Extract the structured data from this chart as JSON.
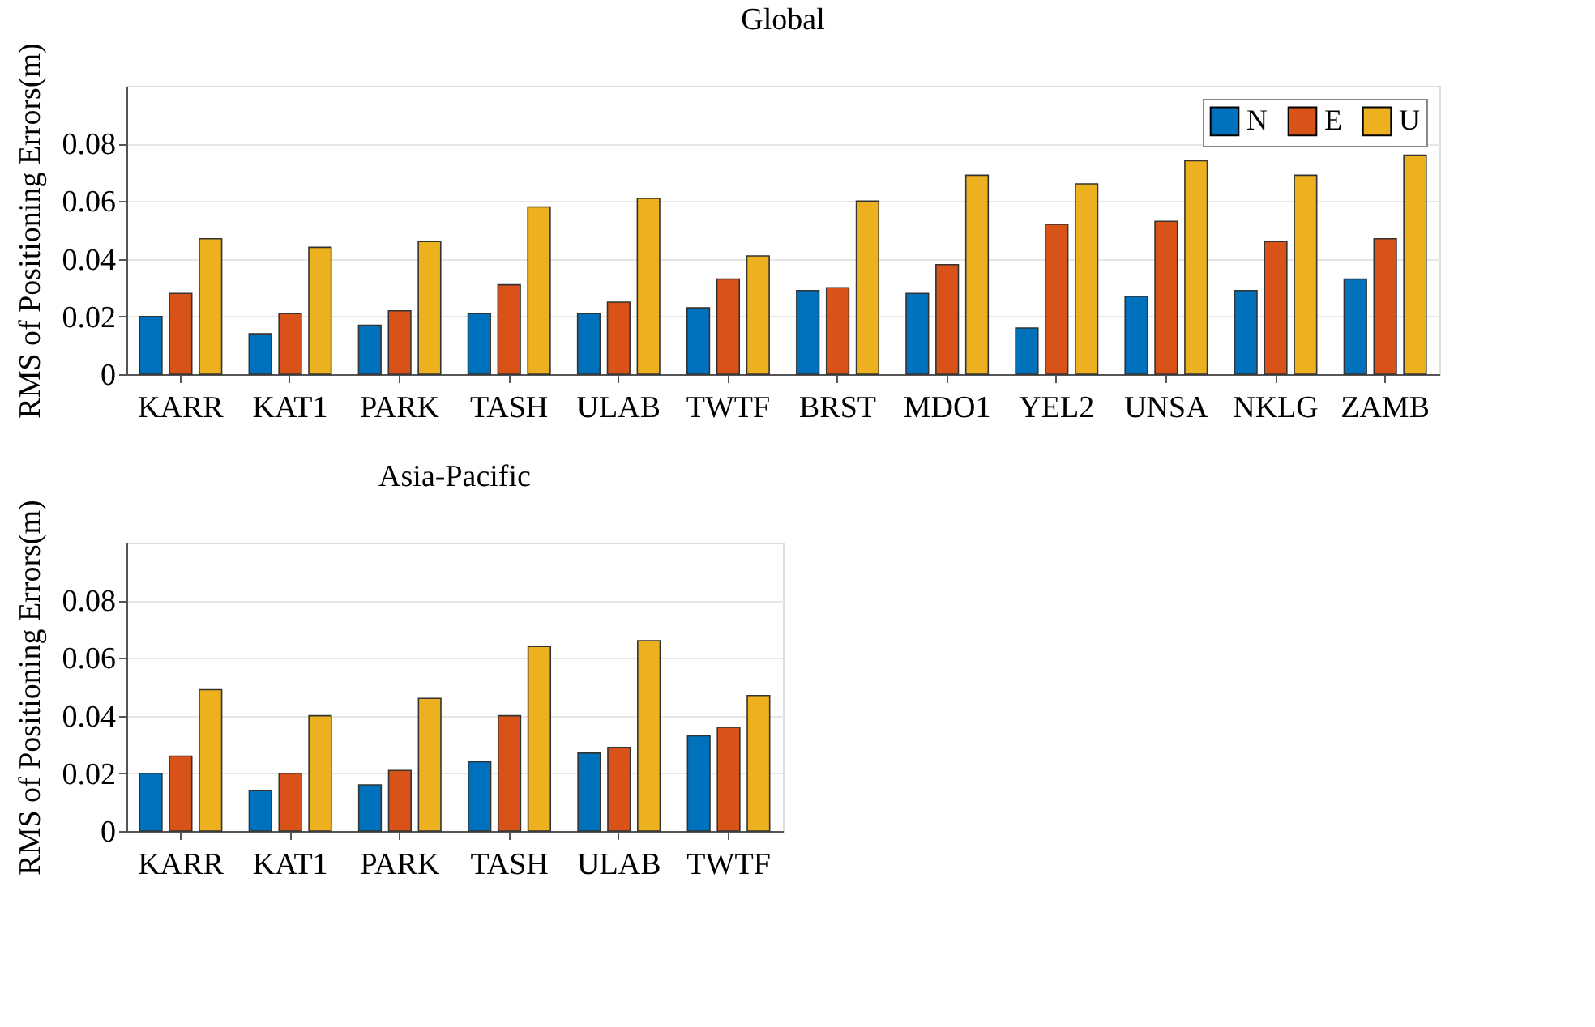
{
  "chart_data": [
    {
      "type": "bar",
      "title": "Global",
      "ylabel": "RMS of Positioning Errors(m)",
      "categories": [
        "KARR",
        "KAT1",
        "PARK",
        "TASH",
        "ULAB",
        "TWTF",
        "BRST",
        "MDO1",
        "YEL2",
        "UNSA",
        "NKLG",
        "ZAMB"
      ],
      "series": [
        {
          "name": "N",
          "color": "#0072bd",
          "values": [
            0.02,
            0.014,
            0.017,
            0.021,
            0.021,
            0.023,
            0.029,
            0.028,
            0.016,
            0.027,
            0.029,
            0.033
          ]
        },
        {
          "name": "E",
          "color": "#d95319",
          "values": [
            0.028,
            0.021,
            0.022,
            0.031,
            0.025,
            0.033,
            0.03,
            0.038,
            0.052,
            0.053,
            0.046,
            0.047
          ]
        },
        {
          "name": "U",
          "color": "#edb120",
          "values": [
            0.047,
            0.044,
            0.046,
            0.058,
            0.061,
            0.041,
            0.06,
            0.069,
            0.066,
            0.074,
            0.069,
            0.076
          ]
        }
      ],
      "ylim": [
        0,
        0.1
      ],
      "yticks": [
        0,
        0.02,
        0.04,
        0.06,
        0.08
      ],
      "grid": "y",
      "legend": "top right"
    },
    {
      "type": "bar",
      "title": "Asia-Pacific",
      "ylabel": "RMS of Positioning Errors(m)",
      "categories": [
        "KARR",
        "KAT1",
        "PARK",
        "TASH",
        "ULAB",
        "TWTF"
      ],
      "series": [
        {
          "color": "#0072bd",
          "values": [
            0.02,
            0.014,
            0.016,
            0.024,
            0.027,
            0.033
          ]
        },
        {
          "color": "#d95319",
          "values": [
            0.026,
            0.02,
            0.021,
            0.04,
            0.029,
            0.036
          ]
        },
        {
          "color": "#edb120",
          "values": [
            0.049,
            0.04,
            0.046,
            0.064,
            0.066,
            0.047
          ]
        }
      ],
      "ylim": [
        0,
        0.1
      ],
      "yticks": [
        0,
        0.02,
        0.04,
        0.06,
        0.08
      ],
      "grid": "y"
    }
  ]
}
